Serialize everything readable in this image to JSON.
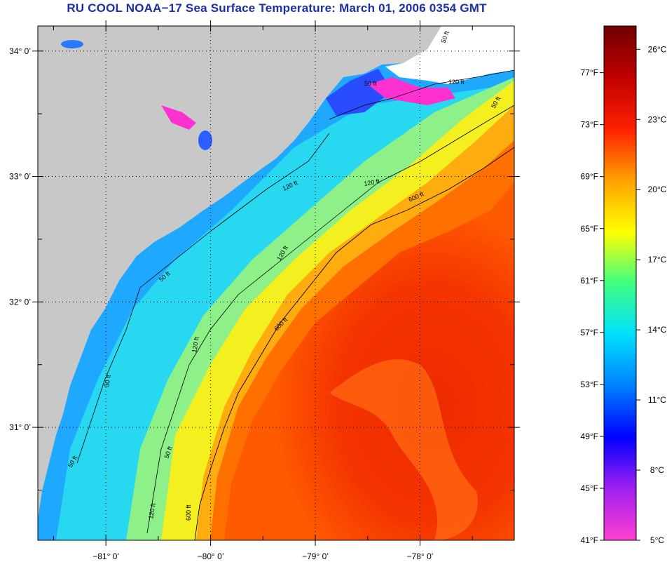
{
  "title": "RU COOL  NOAA−17  Sea Surface Temperature:  March 01, 2006 0354 GMT",
  "map": {
    "lat_labels": [
      "34° 0’",
      "33° 0’",
      "32° 0’",
      "31° 0’"
    ],
    "lon_labels": [
      "−81° 0’",
      "−80° 0’",
      "−79° 0’",
      "−78° 0’"
    ],
    "lat_ticks": [
      34,
      33,
      32,
      31
    ],
    "lon_ticks": [
      -81,
      -80,
      -79,
      -78
    ],
    "lat_range": [
      30.1,
      34.2
    ],
    "lon_range": [
      -81.65,
      -77.1
    ],
    "contour_labels": [
      "50 ft",
      "50 ft",
      "50 ft",
      "120 ft",
      "120 ft",
      "50 ft",
      "120 ft",
      "50 ft",
      "600 ft",
      "120 ft",
      "600 ft",
      "50 ft",
      "50 ft",
      "120 ft",
      "600 ft",
      "120 ft"
    ],
    "colors": {
      "land": "#c8c8c8",
      "grid": "#000000"
    }
  },
  "colorbar": {
    "f_labels": [
      "77°F",
      "73°F",
      "69°F",
      "65°F",
      "61°F",
      "57°F",
      "53°F",
      "49°F",
      "45°F",
      "41°F"
    ],
    "c_labels": [
      "26°C",
      "23°C",
      "20°C",
      "17°C",
      "14°C",
      "11°C",
      "8°C",
      "5°C"
    ],
    "f_values": [
      77,
      73,
      69,
      65,
      61,
      57,
      53,
      49,
      45,
      41
    ],
    "c_values": [
      26,
      23,
      20,
      17,
      14,
      11,
      8,
      5
    ],
    "range_f": [
      41,
      80.6
    ],
    "stops": [
      "#ff40d0",
      "#a020f0",
      "#0000ff",
      "#0080ff",
      "#00e0ff",
      "#40ff80",
      "#ffff00",
      "#ffa000",
      "#ff2000",
      "#c00000",
      "#700000"
    ]
  }
}
